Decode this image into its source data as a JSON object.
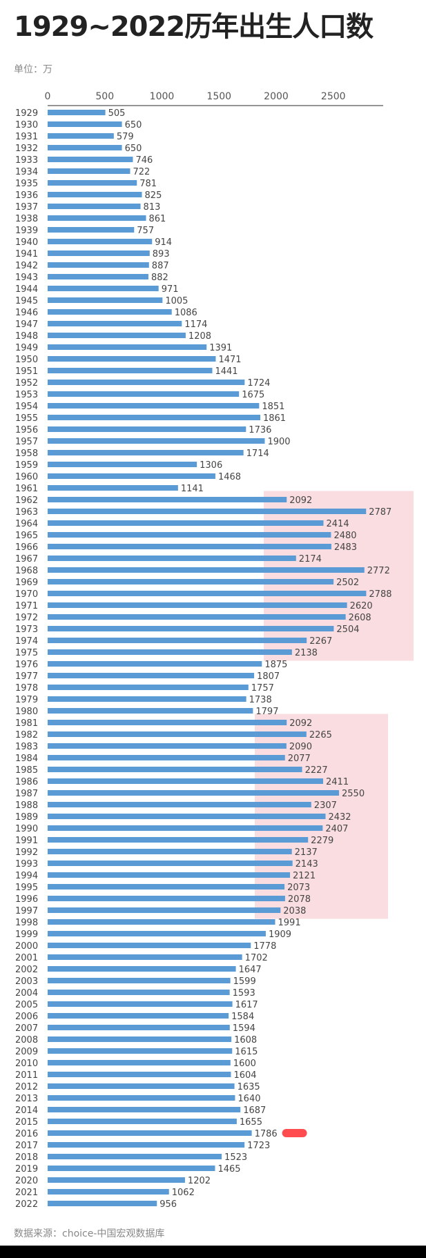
{
  "title": "1929~2022历年出生人口数",
  "unit_label": "单位：万",
  "source_label": "数据来源：choice-中国宏观数据库",
  "colors": {
    "bar": "#5b9bd5",
    "highlight": "#f8d7da",
    "marker": "#ff4d4f",
    "text": "#444444",
    "axis": "#555555",
    "background": "#ffffff"
  },
  "chart_data": {
    "type": "bar",
    "orientation": "horizontal",
    "title": "1929~2022历年出生人口数",
    "xlim": [
      0,
      3000
    ],
    "xticks": [
      0,
      500,
      1000,
      1500,
      2000,
      2500
    ],
    "grid": false,
    "categories": [
      "1929",
      "1930",
      "1931",
      "1932",
      "1933",
      "1934",
      "1935",
      "1936",
      "1937",
      "1938",
      "1939",
      "1940",
      "1941",
      "1942",
      "1943",
      "1944",
      "1945",
      "1946",
      "1947",
      "1948",
      "1949",
      "1950",
      "1951",
      "1952",
      "1953",
      "1954",
      "1955",
      "1956",
      "1957",
      "1958",
      "1959",
      "1960",
      "1961",
      "1962",
      "1963",
      "1964",
      "1965",
      "1966",
      "1967",
      "1968",
      "1969",
      "1970",
      "1971",
      "1972",
      "1973",
      "1974",
      "1975",
      "1976",
      "1977",
      "1978",
      "1979",
      "1980",
      "1981",
      "1982",
      "1983",
      "1984",
      "1985",
      "1986",
      "1987",
      "1988",
      "1989",
      "1990",
      "1991",
      "1992",
      "1993",
      "1994",
      "1995",
      "1996",
      "1997",
      "1998",
      "1999",
      "2000",
      "2001",
      "2002",
      "2003",
      "2004",
      "2005",
      "2006",
      "2007",
      "2008",
      "2009",
      "2010",
      "2011",
      "2012",
      "2013",
      "2014",
      "2015",
      "2016",
      "2017",
      "2018",
      "2019",
      "2020",
      "2021",
      "2022"
    ],
    "values": [
      505,
      650,
      579,
      650,
      746,
      722,
      781,
      825,
      813,
      861,
      757,
      914,
      893,
      887,
      882,
      971,
      1005,
      1086,
      1174,
      1208,
      1391,
      1471,
      1441,
      1724,
      1675,
      1851,
      1861,
      1736,
      1900,
      1714,
      1306,
      1468,
      1141,
      2092,
      2787,
      2414,
      2480,
      2483,
      2174,
      2772,
      2502,
      2788,
      2620,
      2608,
      2504,
      2267,
      2138,
      1875,
      1807,
      1757,
      1738,
      1797,
      2092,
      2265,
      2090,
      2077,
      2227,
      2411,
      2550,
      2307,
      2432,
      2407,
      2279,
      2137,
      2143,
      2121,
      2073,
      2078,
      2038,
      1991,
      1909,
      1778,
      1702,
      1647,
      1599,
      1593,
      1617,
      1584,
      1594,
      1608,
      1615,
      1600,
      1604,
      1635,
      1640,
      1687,
      1655,
      1786,
      1723,
      1523,
      1465,
      1202,
      1062,
      956
    ],
    "highlight_ranges": [
      [
        "1962",
        "1975"
      ],
      [
        "1981",
        "1997"
      ]
    ],
    "marked_category": "2016"
  }
}
